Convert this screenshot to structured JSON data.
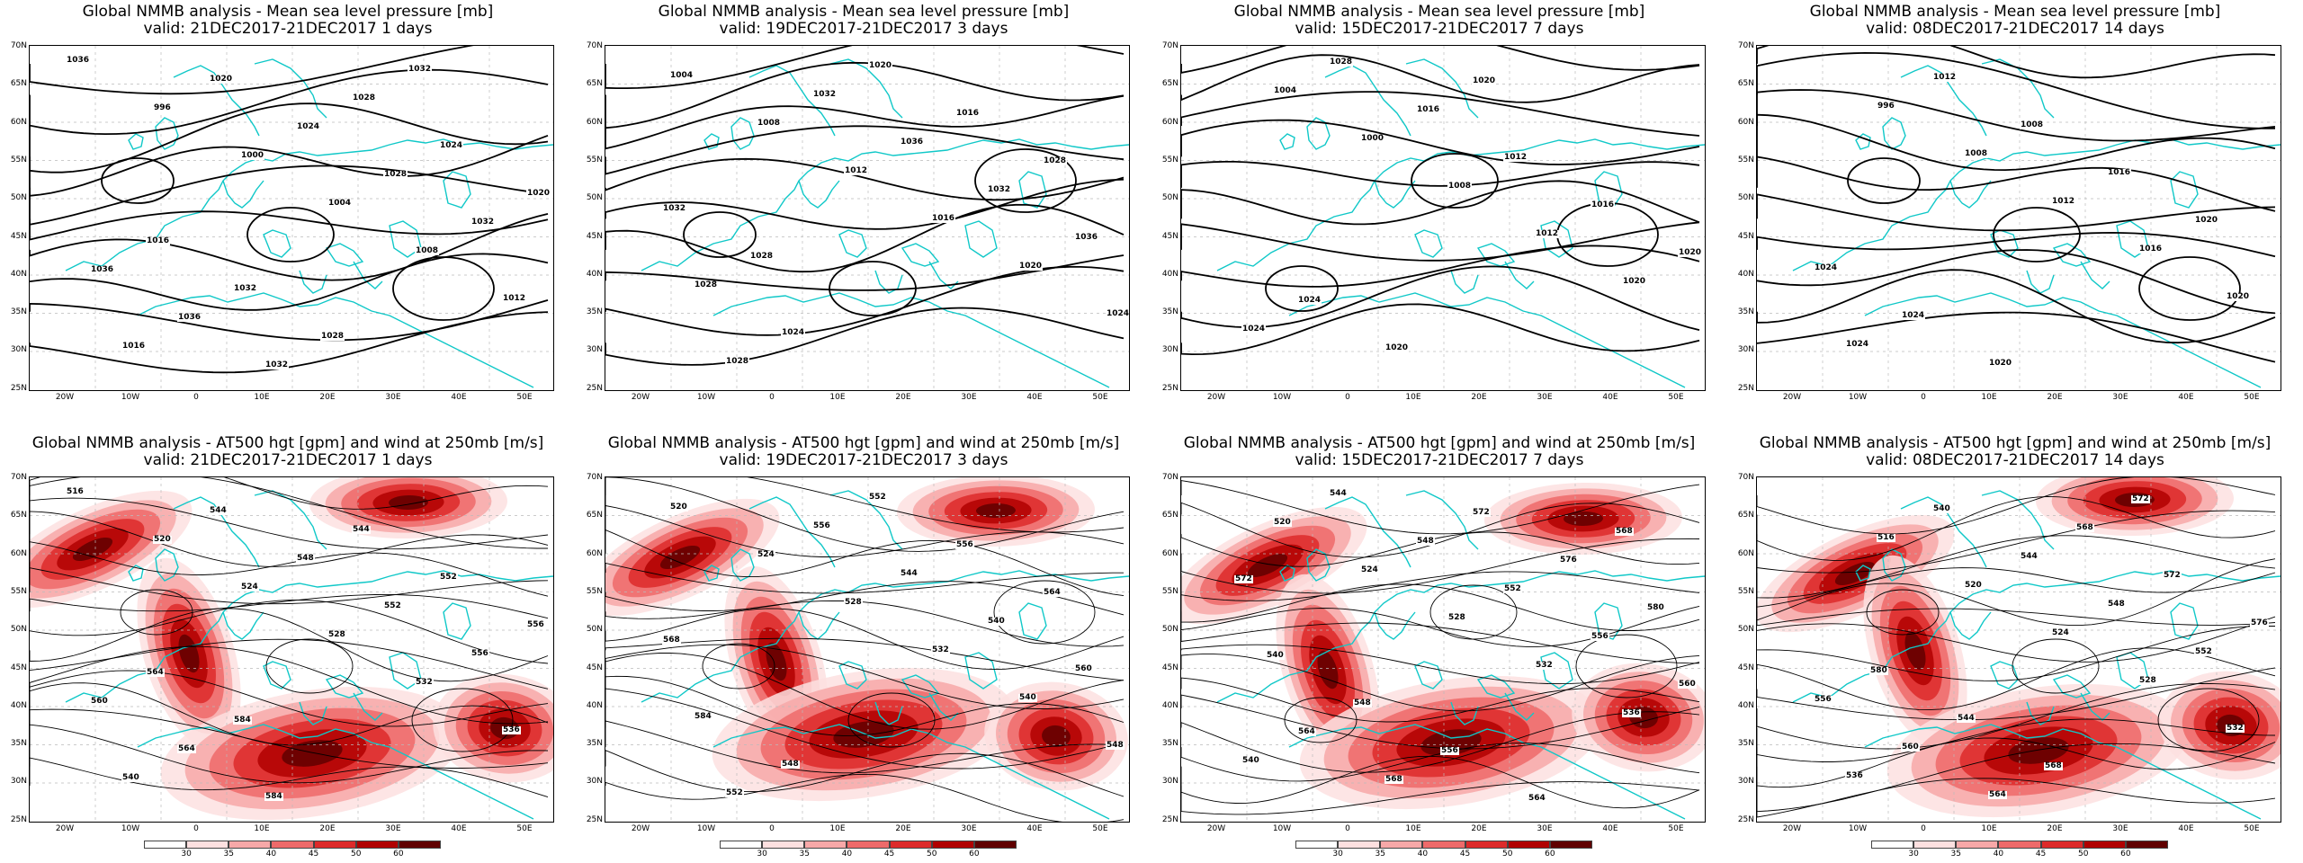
{
  "pressure_panels": [
    {
      "title": "Global NMMB analysis - Mean sea level pressure [mb]",
      "valid": "valid: 21DEC2017-21DEC2017   1 days",
      "labels": [
        "1036",
        "996",
        "1000",
        "1004",
        "1008",
        "1012",
        "1016",
        "1020",
        "1024",
        "1028",
        "1032",
        "1036",
        "1036",
        "1032",
        "1028",
        "1024",
        "1020",
        "1016",
        "1032",
        "1028",
        "1032"
      ]
    },
    {
      "title": "Global NMMB analysis - Mean sea level pressure [mb]",
      "valid": "valid: 19DEC2017-21DEC2017   3 days",
      "labels": [
        "1004",
        "1008",
        "1012",
        "1016",
        "1020",
        "1024",
        "1028",
        "1032",
        "1036",
        "1032",
        "1036",
        "1028",
        "1024",
        "1020",
        "1016",
        "1028",
        "1032",
        "1028"
      ]
    },
    {
      "title": "Global NMMB analysis - Mean sea level pressure [mb]",
      "valid": "valid: 15DEC2017-21DEC2017   7 days",
      "labels": [
        "1004",
        "1000",
        "1008",
        "1012",
        "1020",
        "1024",
        "1028",
        "1016",
        "1012",
        "1016",
        "1020",
        "1024",
        "1020",
        "1020"
      ]
    },
    {
      "title": "Global NMMB analysis - Mean sea level pressure [mb]",
      "valid": "valid: 08DEC2017-21DEC2017   14 days",
      "labels": [
        "996",
        "1008",
        "1012",
        "1016",
        "1020",
        "1024",
        "1012",
        "1008",
        "1016",
        "1020",
        "1024",
        "1024",
        "1020"
      ]
    }
  ],
  "height_panels": [
    {
      "title": "Global NMMB analysis - AT500 hgt [gpm] and wind at 250mb [m/s]",
      "valid": "valid: 21DEC2017-21DEC2017   1 days",
      "labels": [
        "516",
        "520",
        "524",
        "528",
        "532",
        "536",
        "540",
        "544",
        "548",
        "552",
        "556",
        "560",
        "564",
        "584",
        "544",
        "552",
        "556",
        "564",
        "584"
      ]
    },
    {
      "title": "Global NMMB analysis - AT500 hgt [gpm] and wind at 250mb [m/s]",
      "valid": "valid: 19DEC2017-21DEC2017   3 days",
      "labels": [
        "520",
        "524",
        "528",
        "532",
        "540",
        "548",
        "552",
        "556",
        "544",
        "540",
        "560",
        "584",
        "548",
        "552",
        "556",
        "564",
        "568"
      ]
    },
    {
      "title": "Global NMMB analysis - AT500 hgt [gpm] and wind at 250mb [m/s]",
      "valid": "valid: 15DEC2017-21DEC2017   7 days",
      "labels": [
        "520",
        "524",
        "528",
        "532",
        "536",
        "540",
        "544",
        "548",
        "552",
        "556",
        "560",
        "564",
        "568",
        "572",
        "576",
        "580",
        "540",
        "548",
        "556",
        "564",
        "568",
        "572"
      ]
    },
    {
      "title": "Global NMMB analysis - AT500 hgt [gpm] and wind at 250mb [m/s]",
      "valid": "valid: 08DEC2017-21DEC2017   14 days",
      "labels": [
        "516",
        "520",
        "524",
        "528",
        "532",
        "536",
        "540",
        "544",
        "548",
        "552",
        "556",
        "560",
        "564",
        "568",
        "572",
        "576",
        "580",
        "544",
        "568",
        "572"
      ]
    }
  ],
  "lat_labels": [
    "70N",
    "65N",
    "60N",
    "55N",
    "50N",
    "45N",
    "40N",
    "35N",
    "30N",
    "25N"
  ],
  "lon_labels": [
    "20W",
    "10W",
    "0",
    "10E",
    "20E",
    "30E",
    "40E",
    "50E"
  ],
  "colorbar": {
    "labels": [
      "30",
      "35",
      "40",
      "45",
      "50",
      "60"
    ],
    "colors": [
      "#ffffff",
      "#fde0e0",
      "#f7a8a8",
      "#ee6a6a",
      "#dd2a2a",
      "#b00000",
      "#600000"
    ]
  },
  "colors": {
    "isobar": "#000000",
    "coast": "#10c8c8",
    "grid": "#bbbbbb"
  }
}
